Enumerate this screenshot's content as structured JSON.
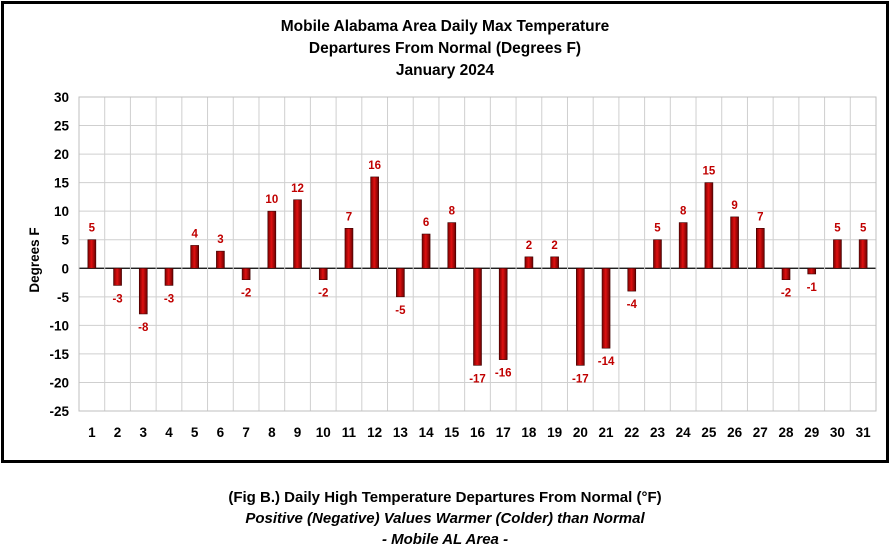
{
  "chart_data": {
    "type": "bar",
    "title": [
      "Mobile Alabama Area Daily Max Temperature",
      "Departures From Normal (Degrees F)",
      "January 2024"
    ],
    "xlabel": "",
    "ylabel": "Degrees F",
    "ylim": [
      -25,
      30
    ],
    "ytick_step": 5,
    "grid": true,
    "categories": [
      "1",
      "2",
      "3",
      "4",
      "5",
      "6",
      "7",
      "8",
      "9",
      "10",
      "11",
      "12",
      "13",
      "14",
      "15",
      "16",
      "17",
      "18",
      "19",
      "20",
      "21",
      "22",
      "23",
      "24",
      "25",
      "26",
      "27",
      "28",
      "29",
      "30",
      "31"
    ],
    "values": [
      5,
      -3,
      -8,
      -3,
      4,
      3,
      -2,
      10,
      12,
      -2,
      7,
      16,
      -5,
      6,
      8,
      -17,
      -16,
      2,
      2,
      -17,
      -14,
      -4,
      5,
      8,
      15,
      9,
      7,
      -2,
      -1,
      5,
      5
    ],
    "bar_color": "#c00000",
    "label_color": "#c00000"
  },
  "caption": {
    "line1": "(Fig B.) Daily High Temperature Departures From Normal (°F)",
    "line2": "Positive (Negative) Values Warmer (Colder) than Normal",
    "line3": "- Mobile AL Area -"
  }
}
